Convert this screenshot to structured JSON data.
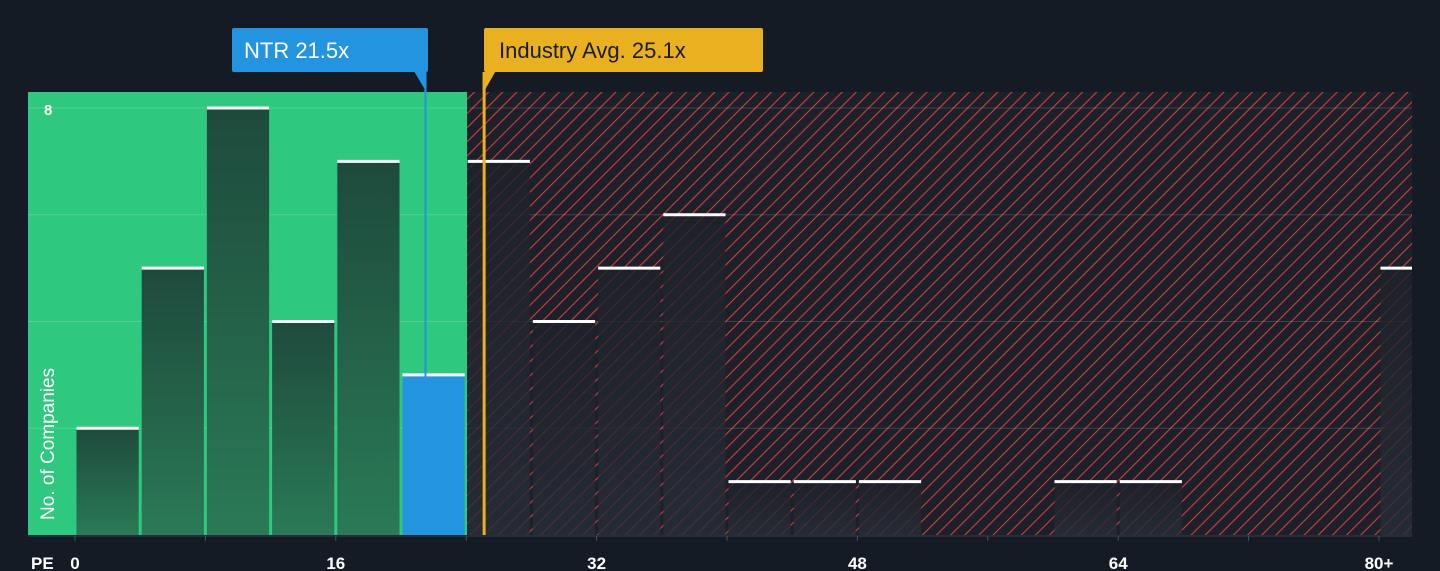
{
  "colors": {
    "background": "#151b24",
    "undervalued_zone": "#2ec97e",
    "overvalued_hatch": "#d93b3f",
    "overvalued_bg": "#1b2029",
    "bar_fill_green_top": "#1e5040",
    "bar_fill_green_bottom": "#2a7a56",
    "bar_fill_dark": "#1e222b",
    "company_bar": "#2394e0",
    "industry_avg": "#e9b020",
    "bar_cap": "#ffffff"
  },
  "chart_data": {
    "type": "bar",
    "xlabel": "PE",
    "ylabel": "No. of Companies",
    "x_ticks": [
      0,
      16,
      32,
      48,
      64,
      "80+"
    ],
    "y_ticks": [
      8
    ],
    "xlim": [
      0,
      82
    ],
    "ylim": [
      0,
      8.3
    ],
    "bin_width": 4,
    "bins": [
      {
        "x0": 0,
        "x1": 4,
        "count": 2
      },
      {
        "x0": 4,
        "x1": 8,
        "count": 5
      },
      {
        "x0": 8,
        "x1": 12,
        "count": 8
      },
      {
        "x0": 12,
        "x1": 16,
        "count": 4
      },
      {
        "x0": 16,
        "x1": 20,
        "count": 7
      },
      {
        "x0": 20,
        "x1": 24,
        "count": 3,
        "highlight": true
      },
      {
        "x0": 24,
        "x1": 28,
        "count": 7
      },
      {
        "x0": 28,
        "x1": 32,
        "count": 4
      },
      {
        "x0": 32,
        "x1": 36,
        "count": 5
      },
      {
        "x0": 36,
        "x1": 40,
        "count": 6
      },
      {
        "x0": 40,
        "x1": 44,
        "count": 1
      },
      {
        "x0": 44,
        "x1": 48,
        "count": 1
      },
      {
        "x0": 48,
        "x1": 52,
        "count": 1
      },
      {
        "x0": 60,
        "x1": 64,
        "count": 1
      },
      {
        "x0": 64,
        "x1": 68,
        "count": 1
      },
      {
        "x0": 80,
        "x1": 82,
        "count": 5
      }
    ],
    "company": {
      "label": "NTR 21.5x",
      "value": 21.5
    },
    "industry_avg": {
      "label": "Industry Avg. 25.1x",
      "value": 25.1
    },
    "undervalued_until": 24
  }
}
